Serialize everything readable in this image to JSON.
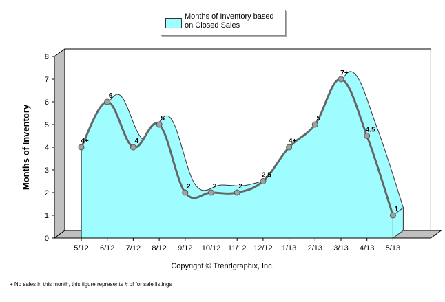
{
  "legend": {
    "label": "Months of Inventory based on Closed Sales",
    "fill_color": "#9ffcff",
    "line_color": "#666666"
  },
  "copyright": "Copyright © Trendgraphix, Inc.",
  "footnote": "+ No sales in this month, this figure represents # of for sale listings",
  "chart_data": {
    "type": "area",
    "title": "",
    "xlabel": "",
    "ylabel": "Months of Inventory",
    "ylim": [
      0,
      8
    ],
    "yticks": [
      "0",
      "1",
      "2",
      "3",
      "4",
      "5",
      "6",
      "7",
      "8"
    ],
    "categories": [
      "5/12",
      "6/12",
      "7/12",
      "8/12",
      "9/12",
      "10/12",
      "11/12",
      "12/12",
      "1/13",
      "2/13",
      "3/13",
      "4/13",
      "5/13"
    ],
    "series": [
      {
        "name": "Months of Inventory based on Closed Sales",
        "values": [
          4,
          6,
          4,
          5,
          2,
          2,
          2,
          2.5,
          4,
          5,
          7,
          4.5,
          1
        ],
        "data_labels": [
          "4+",
          "6",
          "4",
          "5",
          "2",
          "2",
          "2",
          "2.5",
          "4+",
          "5",
          "7+",
          "4.5",
          "1"
        ]
      }
    ],
    "grid": false,
    "legend_position": "top"
  }
}
